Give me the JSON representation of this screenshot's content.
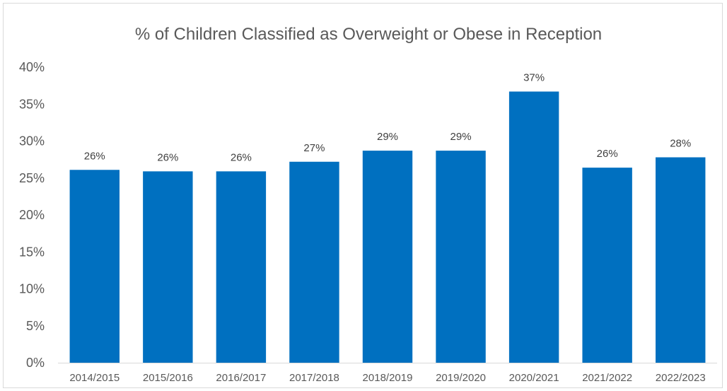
{
  "chart_data": {
    "type": "bar",
    "title": "% of Children Classified as Overweight or Obese in Reception",
    "xlabel": "",
    "ylabel": "",
    "categories": [
      "2014/2015",
      "2015/2016",
      "2016/2017",
      "2017/2018",
      "2018/2019",
      "2019/2020",
      "2020/2021",
      "2021/2022",
      "2022/2023"
    ],
    "values": [
      26.1,
      25.9,
      25.9,
      27.2,
      28.7,
      28.7,
      36.7,
      26.4,
      27.8
    ],
    "data_labels": [
      "26%",
      "26%",
      "26%",
      "27%",
      "29%",
      "29%",
      "37%",
      "26%",
      "28%"
    ],
    "ylim": [
      0,
      40
    ],
    "yticks": [
      0,
      5,
      10,
      15,
      20,
      25,
      30,
      35,
      40
    ],
    "ytick_labels": [
      "0%",
      "5%",
      "10%",
      "15%",
      "20%",
      "25%",
      "30%",
      "35%",
      "40%"
    ],
    "grid": false,
    "legend": "none",
    "bar_color": "#0070c0"
  }
}
